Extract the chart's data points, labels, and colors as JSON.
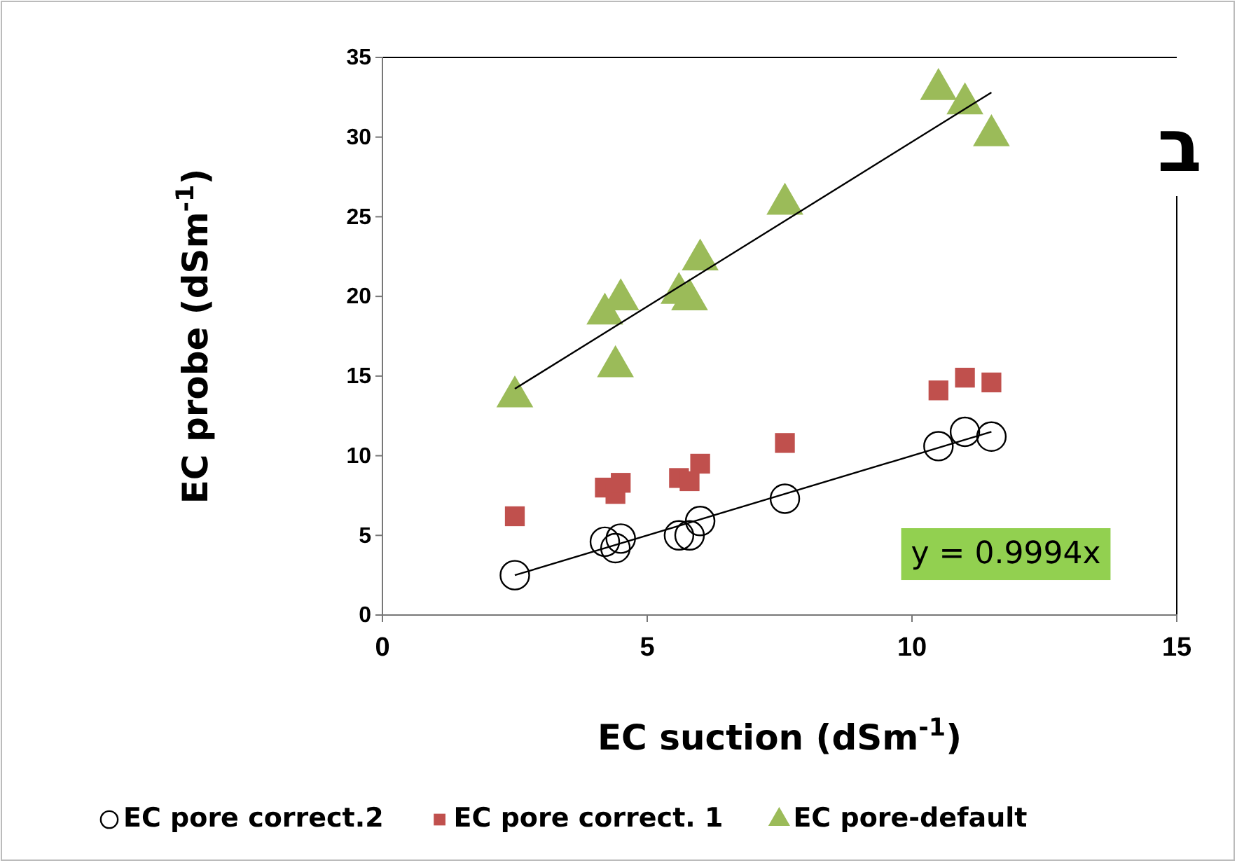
{
  "chart_data": {
    "type": "scatter",
    "xlabel": "EC suction (dSm$^{-1}$)",
    "ylabel": "EC probe (dSm$^{-1}$)",
    "xlim": [
      0,
      15
    ],
    "xticks": [
      0,
      5,
      10,
      15
    ],
    "ylim": [
      0,
      35
    ],
    "yticks": [
      0,
      5,
      10,
      15,
      20,
      25,
      30,
      35
    ],
    "grid": false,
    "legend": "bottom",
    "annotations": [
      "ב",
      "y = 0.9994x"
    ],
    "series": [
      {
        "name": "EC pore correct.2",
        "color": "#000000",
        "marker": "circle",
        "x": [
          2.5,
          4.2,
          4.4,
          4.5,
          5.6,
          5.8,
          6.0,
          7.6,
          10.5,
          11.0,
          11.5
        ],
        "values": [
          2.5,
          4.6,
          4.2,
          4.8,
          5.0,
          5.0,
          5.9,
          7.3,
          10.6,
          11.5,
          11.2
        ]
      },
      {
        "name": "EC pore correct. 1",
        "color": "#c0504d",
        "marker": "square",
        "x": [
          2.5,
          4.2,
          4.4,
          4.5,
          5.6,
          5.8,
          6.0,
          7.6,
          10.5,
          11.0,
          11.5
        ],
        "values": [
          6.2,
          8.0,
          7.6,
          8.3,
          8.6,
          8.4,
          9.5,
          10.8,
          14.1,
          14.9,
          14.6
        ]
      },
      {
        "name": "EC pore-default",
        "color": "#9bbb59",
        "marker": "triangle",
        "x": [
          2.5,
          4.2,
          4.4,
          4.5,
          5.6,
          5.8,
          6.0,
          7.6,
          10.5,
          11.0,
          11.5
        ],
        "values": [
          13.7,
          18.9,
          15.6,
          19.8,
          20.2,
          19.8,
          22.3,
          25.8,
          33.0,
          32.1,
          30.1
        ]
      },
      {
        "type": "line",
        "color": "#000000",
        "marker": "none",
        "x": [
          2.5,
          11.5
        ],
        "values": [
          2.5,
          11.5
        ]
      },
      {
        "type": "line",
        "color": "#000000",
        "marker": "none",
        "x": [
          2.5,
          11.5
        ],
        "values": [
          14.2,
          32.8
        ]
      }
    ]
  }
}
